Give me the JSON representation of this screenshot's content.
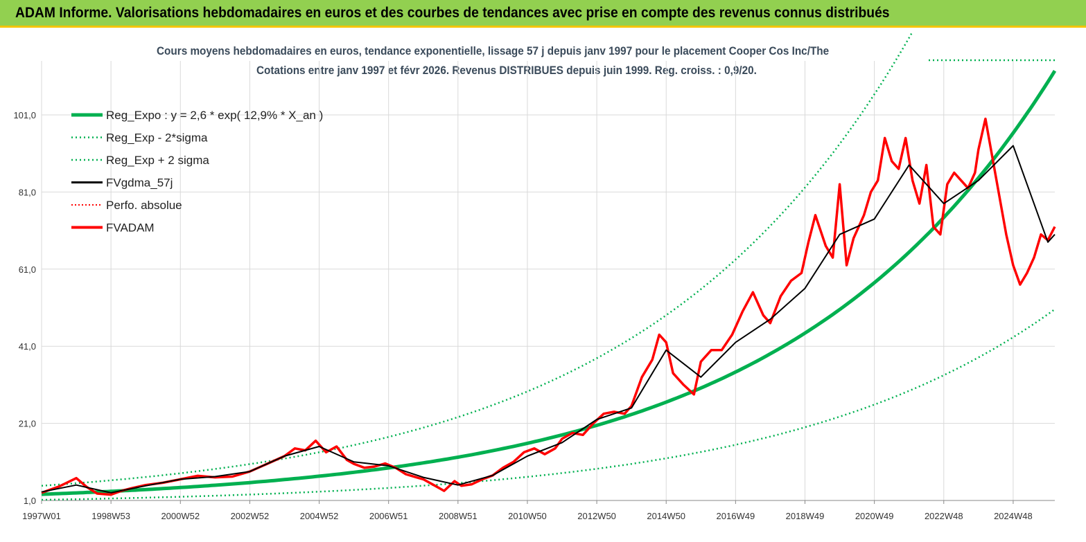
{
  "header": {
    "title": "ADAM Informe. Valorisations hebdomadaires en euros et des courbes de tendances avec prise en compte des revenus connus distribués"
  },
  "colors": {
    "header_bg": "#92d050",
    "accent_bar": "#f5c400",
    "reg_green": "#00b050",
    "fvadam_red": "#ff0000",
    "fvgdma_black": "#000000"
  },
  "chart_data": {
    "type": "line",
    "title": "Cours moyens hebdomadaires en euros, tendance exponentielle, lissage 57 j depuis janv 1997 pour le placement Cooper Cos Inc/The",
    "subtitle": "Cotations entre janv 1997 et févr 2026. Revenus DISTRIBUES depuis juin 1999. Reg. croiss. : 0,9/20.",
    "x_ticks": [
      "1997W01",
      "1998W53",
      "2000W52",
      "2002W52",
      "2004W52",
      "2006W51",
      "2008W51",
      "2010W50",
      "2012W50",
      "2014W50",
      "2016W49",
      "2018W49",
      "2020W49",
      "2022W48",
      "2024W48"
    ],
    "x_tick_years": [
      1997.0,
      1999.0,
      2001.0,
      2003.0,
      2005.0,
      2007.0,
      2009.0,
      2011.0,
      2013.0,
      2015.0,
      2017.0,
      2019.0,
      2021.0,
      2023.0,
      2025.0
    ],
    "xlim": [
      1997.0,
      2026.2
    ],
    "y_ticks": [
      "1,0",
      "21,0",
      "41,0",
      "61,0",
      "81,0",
      "101,0"
    ],
    "ylim": [
      1.0,
      115.0
    ],
    "y_tick_values": [
      1,
      21,
      41,
      61,
      81,
      101
    ],
    "grid": true,
    "legend_position": "top-left",
    "regression": {
      "a": 2.6,
      "rate": 0.129,
      "start_year": 1997.0
    },
    "legend": [
      {
        "label": "Reg_Expo : y = 2,6 * exp( 12,9% *  X_an )",
        "style": "thick-green"
      },
      {
        "label": "Reg_Exp - 2*sigma",
        "style": "dotted-green"
      },
      {
        "label": "Reg_Exp + 2 sigma",
        "style": "dotted-green"
      },
      {
        "label": "FVgdma_57j",
        "style": "black"
      },
      {
        "label": "Perfo. absolue",
        "style": "dotted-red"
      },
      {
        "label": "FVADAM",
        "style": "red"
      }
    ],
    "series": [
      {
        "name": "FVADAM",
        "x": [
          1997.0,
          1997.5,
          1998.0,
          1998.3,
          1998.6,
          1999.0,
          1999.3,
          1999.6,
          2000.0,
          2000.5,
          2001.0,
          2001.5,
          2002.0,
          2002.5,
          2003.0,
          2003.5,
          2004.0,
          2004.3,
          2004.6,
          2004.9,
          2005.2,
          2005.5,
          2005.8,
          2006.0,
          2006.3,
          2006.6,
          2006.9,
          2007.2,
          2007.5,
          2007.8,
          2008.0,
          2008.3,
          2008.6,
          2008.9,
          2009.1,
          2009.4,
          2009.7,
          2010.0,
          2010.3,
          2010.6,
          2010.9,
          2011.2,
          2011.5,
          2011.8,
          2012.0,
          2012.3,
          2012.6,
          2012.9,
          2013.2,
          2013.5,
          2013.8,
          2014.0,
          2014.3,
          2014.6,
          2014.8,
          2015.0,
          2015.2,
          2015.5,
          2015.8,
          2016.0,
          2016.3,
          2016.6,
          2016.9,
          2017.2,
          2017.5,
          2017.8,
          2018.0,
          2018.3,
          2018.6,
          2018.9,
          2019.1,
          2019.3,
          2019.6,
          2019.8,
          2020.0,
          2020.2,
          2020.4,
          2020.7,
          2020.9,
          2021.1,
          2021.3,
          2021.5,
          2021.7,
          2021.9,
          2022.1,
          2022.3,
          2022.5,
          2022.7,
          2022.9,
          2023.1,
          2023.3,
          2023.5,
          2023.7,
          2023.9,
          2024.0,
          2024.2,
          2024.4,
          2024.6,
          2024.8,
          2025.0,
          2025.2,
          2025.4,
          2025.6,
          2025.8,
          2026.0,
          2026.2
        ],
        "y": [
          3.0,
          4.6,
          6.8,
          4.5,
          2.8,
          2.5,
          3.5,
          4.2,
          5.0,
          5.6,
          6.5,
          7.4,
          7.0,
          7.2,
          8.5,
          10.5,
          12.5,
          14.5,
          14.0,
          16.5,
          13.5,
          15.0,
          11.5,
          10.5,
          9.5,
          9.8,
          10.6,
          9.5,
          7.8,
          7.0,
          6.5,
          5.0,
          3.5,
          6.0,
          4.8,
          5.2,
          6.5,
          7.5,
          9.5,
          11.0,
          13.5,
          14.5,
          13.0,
          14.5,
          17.0,
          18.5,
          18.0,
          21.0,
          23.5,
          24.0,
          23.5,
          25.5,
          33.0,
          37.5,
          44.0,
          42.0,
          34.0,
          31.0,
          28.5,
          37.0,
          40.0,
          40.0,
          44.0,
          50.0,
          55.0,
          49.0,
          47.0,
          54.0,
          58.0,
          60.0,
          68.0,
          75.0,
          67.0,
          64.0,
          83.0,
          62.0,
          69.0,
          75.0,
          81.0,
          84.0,
          95.0,
          89.0,
          87.0,
          95.0,
          84.0,
          78.0,
          88.0,
          72.0,
          70.0,
          83.0,
          86.0,
          84.0,
          82.0,
          86.0,
          92.0,
          100.0,
          90.0,
          80.0,
          70.0,
          62.0,
          57.0,
          60.0,
          64.0,
          70.0,
          68.5,
          72.0
        ]
      },
      {
        "name": "FVgdma_57j",
        "x": [
          1997.0,
          1998.0,
          1999.0,
          2000.0,
          2001.0,
          2002.0,
          2003.0,
          2004.0,
          2005.0,
          2006.0,
          2007.0,
          2008.0,
          2009.0,
          2010.0,
          2011.0,
          2012.0,
          2013.0,
          2014.0,
          2015.0,
          2016.0,
          2017.0,
          2018.0,
          2019.0,
          2020.0,
          2021.0,
          2022.0,
          2023.0,
          2024.0,
          2025.0,
          2026.0,
          2026.2
        ],
        "y": [
          3.2,
          5.0,
          3.0,
          4.8,
          6.5,
          7.2,
          8.5,
          12.5,
          15.0,
          11.0,
          10.0,
          7.0,
          5.0,
          7.5,
          12.5,
          16.0,
          22.0,
          25.0,
          40.0,
          33.0,
          42.0,
          48.0,
          56.0,
          70.0,
          74.0,
          88.0,
          78.0,
          84.0,
          93.0,
          68.0,
          70.0
        ]
      }
    ]
  }
}
